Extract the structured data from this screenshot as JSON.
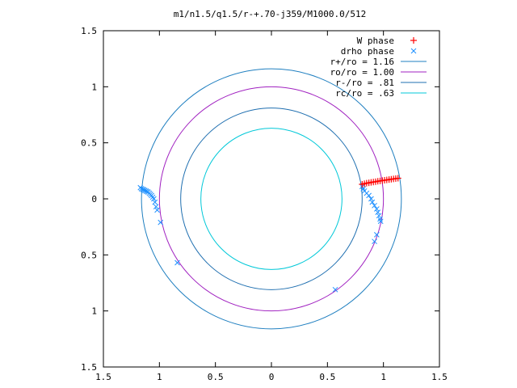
{
  "chart_data": {
    "type": "scatter",
    "title": "m1/n1.5/q1.5/r-+.70-j359/M1000.0/512",
    "xlabel": "",
    "ylabel": "",
    "xlim": [
      -1.5,
      1.5
    ],
    "ylim": [
      -1.5,
      1.5
    ],
    "x_ticks": [
      -1.5,
      -1,
      -0.5,
      0,
      0.5,
      1,
      1.5
    ],
    "y_ticks": [
      -1.5,
      -1,
      -0.5,
      0,
      0.5,
      1,
      1.5
    ],
    "x_tick_labels": [
      "1.5",
      "1",
      "0.5",
      "0",
      "0.5",
      "1",
      "1.5"
    ],
    "y_tick_labels": [
      "1.5",
      "1",
      "0.5",
      "0",
      "0.5",
      "1",
      "1.5"
    ],
    "grid": false,
    "legend_position": "top-right",
    "circles": [
      {
        "name": "r+/ro = 1.16",
        "radius": 1.16,
        "color": "#1f7fc0"
      },
      {
        "name": "ro/ro = 1.00",
        "radius": 1.0,
        "color": "#a020c0"
      },
      {
        "name": "r-/ro = .81",
        "radius": 0.81,
        "color": "#1f6fb0"
      },
      {
        "name": "rc/ro = .63",
        "radius": 0.63,
        "color": "#00c8d8"
      }
    ],
    "series": [
      {
        "name": "W phase",
        "marker": "plus",
        "color": "#ff0000",
        "points": [
          [
            0.81,
            0.13
          ],
          [
            0.83,
            0.135
          ],
          [
            0.85,
            0.14
          ],
          [
            0.87,
            0.143
          ],
          [
            0.89,
            0.147
          ],
          [
            0.91,
            0.15
          ],
          [
            0.93,
            0.153
          ],
          [
            0.95,
            0.157
          ],
          [
            0.97,
            0.16
          ],
          [
            0.99,
            0.163
          ],
          [
            1.01,
            0.166
          ],
          [
            1.03,
            0.169
          ],
          [
            1.05,
            0.172
          ],
          [
            1.07,
            0.175
          ],
          [
            1.09,
            0.178
          ],
          [
            1.11,
            0.181
          ],
          [
            1.13,
            0.184
          ]
        ]
      },
      {
        "name": "drho phase",
        "marker": "cross",
        "color": "#1e90ff",
        "points": [
          [
            -1.17,
            0.1
          ],
          [
            -1.16,
            0.09
          ],
          [
            -1.15,
            0.085
          ],
          [
            -1.14,
            0.08
          ],
          [
            -1.13,
            0.075
          ],
          [
            -1.12,
            0.07
          ],
          [
            -1.11,
            0.065
          ],
          [
            -1.1,
            0.06
          ],
          [
            -1.09,
            0.05
          ],
          [
            -1.08,
            0.04
          ],
          [
            -1.07,
            0.03
          ],
          [
            -1.06,
            0.015
          ],
          [
            -1.05,
            0.0
          ],
          [
            -1.04,
            -0.03
          ],
          [
            -1.03,
            -0.07
          ],
          [
            -1.02,
            -0.1
          ],
          [
            -0.99,
            -0.21
          ],
          [
            -0.84,
            -0.57
          ],
          [
            0.81,
            0.11
          ],
          [
            0.82,
            0.09
          ],
          [
            0.83,
            0.07
          ],
          [
            0.85,
            0.05
          ],
          [
            0.87,
            0.03
          ],
          [
            0.89,
            0.0
          ],
          [
            0.9,
            -0.03
          ],
          [
            0.92,
            -0.06
          ],
          [
            0.94,
            -0.09
          ],
          [
            0.95,
            -0.12
          ],
          [
            0.96,
            -0.15
          ],
          [
            0.97,
            -0.18
          ],
          [
            0.975,
            -0.2
          ],
          [
            0.94,
            -0.32
          ],
          [
            0.92,
            -0.38
          ],
          [
            0.57,
            -0.81
          ]
        ]
      }
    ]
  }
}
